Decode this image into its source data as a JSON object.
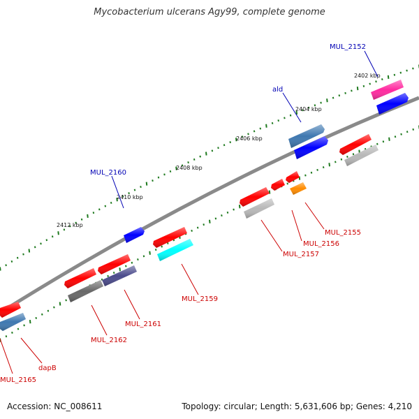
{
  "header": {
    "title": "Mycobacterium ulcerans Agy99, complete genome"
  },
  "footer": {
    "accession": "Accession: NC_008611",
    "summary": "Topology: circular; Length: 5,631,606 bp; Genes: 4,210"
  },
  "colors": {
    "backbone": "#7a7a7a",
    "tick": "#1f7a1f",
    "label_forward": "#0000b4",
    "label_reverse": "#cc0000",
    "red": "#ff0000",
    "blue": "#0000ff",
    "steel": "#3f78b0",
    "gray": "#b8b8b8",
    "darkgray": "#686868",
    "cyan": "#00ffff",
    "purple": "#4b4b8c",
    "orange": "#ff8c00",
    "pink": "#ff2aa0"
  },
  "ruler_labels": [
    "2402 kbp",
    "2404 kbp",
    "2406 kbp",
    "2408 kbp",
    "2410 kbp",
    "2412 kbp"
  ],
  "gene_labels": {
    "forward": [
      "MUL_2152",
      "ald",
      "MUL_2160"
    ],
    "reverse": [
      "MUL_2155",
      "MUL_2156",
      "MUL_2157",
      "MUL_2159",
      "MUL_2161",
      "MUL_2162",
      "dapB",
      "MUL_2165"
    ]
  }
}
